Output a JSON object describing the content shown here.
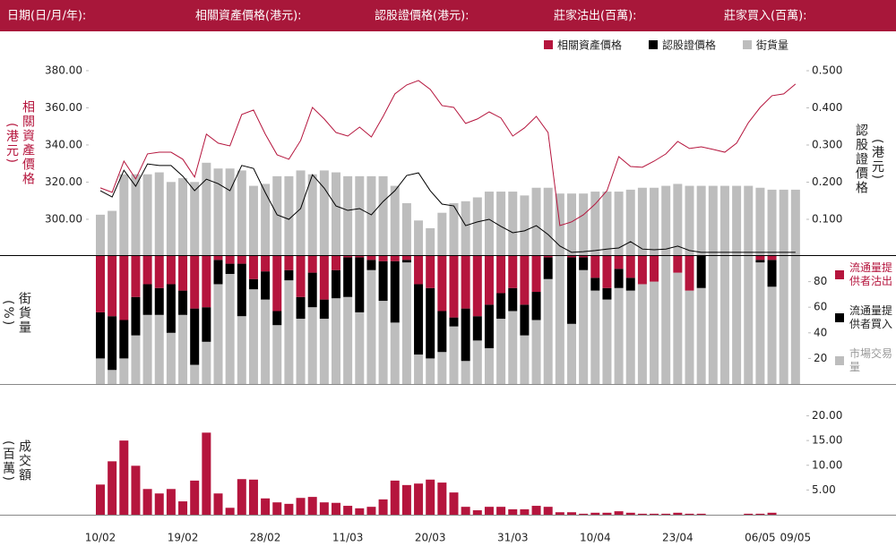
{
  "header_labels": [
    "日期(日/月/年):",
    "相關資產價格(港元):",
    "認股證價格(港元):",
    "莊家沽出(百萬):",
    "莊家買入(百萬):"
  ],
  "chart_data": [
    {
      "type": "combo",
      "legend": "top-right",
      "y_label": "相關資產價格",
      "y_label_unit": "(港元)",
      "y2_label": "認股證價格",
      "y2_label_unit": "(港元)",
      "ylim": [
        280.7,
        384.3
      ],
      "yticks": [
        {
          "value": 300,
          "label": "300.00"
        },
        {
          "value": 320,
          "label": "320.00"
        },
        {
          "value": 340,
          "label": "340.00"
        },
        {
          "value": 360,
          "label": "360.00"
        },
        {
          "value": 380,
          "label": "380.00"
        }
      ],
      "y2lim": [
        0.0036,
        0.5217
      ],
      "y2ticks": [
        {
          "value": 0.1,
          "label": "0.100"
        },
        {
          "value": 0.2,
          "label": "0.200"
        },
        {
          "value": 0.3,
          "label": "0.300"
        },
        {
          "value": 0.4,
          "label": "0.400"
        },
        {
          "value": 0.5,
          "label": "0.500"
        }
      ],
      "y3lim": [
        0,
        100
      ],
      "series": [
        {
          "name": "相關資產價格",
          "color": "#b5153d",
          "type": "line",
          "values": [
            316.9,
            314.5,
            331.3,
            321.7,
            335.2,
            336.1,
            336.1,
            332.3,
            322.7,
            345.8,
            341.0,
            339.5,
            356.4,
            358.8,
            345.8,
            334.7,
            332.3,
            342.4,
            360.2,
            354.0,
            346.7,
            344.8,
            349.6,
            344.3,
            355.4,
            367.5,
            372.3,
            374.7,
            369.9,
            361.2,
            360.2,
            351.6,
            354.0,
            357.8,
            354.5,
            344.8,
            349.2,
            355.4,
            346.7,
            296.6,
            298.6,
            302.4,
            308.2,
            315.4,
            333.7,
            328.4,
            328.0,
            331.3,
            335.2,
            341.9,
            338.1,
            339.0,
            337.6,
            336.1,
            341.0,
            352.0,
            360.2,
            366.5,
            367.5,
            372.8
          ]
        },
        {
          "name": "認股證價格",
          "color": "#000000",
          "type": "line",
          "axis": "y2",
          "values": [
            0.177,
            0.16,
            0.232,
            0.189,
            0.249,
            0.245,
            0.245,
            0.216,
            0.177,
            0.208,
            0.196,
            0.177,
            0.245,
            0.237,
            0.172,
            0.112,
            0.1,
            0.129,
            0.22,
            0.184,
            0.136,
            0.124,
            0.129,
            0.112,
            0.148,
            0.177,
            0.218,
            0.225,
            0.177,
            0.141,
            0.136,
            0.083,
            0.093,
            0.1,
            0.081,
            0.064,
            0.069,
            0.083,
            0.059,
            0.028,
            0.011,
            0.013,
            0.016,
            0.02,
            0.023,
            0.04,
            0.02,
            0.018,
            0.02,
            0.028,
            0.016,
            0.011,
            0.011,
            0.011,
            0.011,
            0.011,
            0.011,
            0.011,
            0.011,
            0.011
          ]
        },
        {
          "name": "街貨量",
          "color": "#bdbdbd",
          "type": "bar",
          "axis": "y3",
          "values": [
            21,
            23,
            42,
            42,
            42,
            43,
            38,
            40,
            38,
            48,
            45,
            45,
            44,
            36,
            37,
            41,
            41,
            44,
            42,
            44,
            43,
            41,
            41,
            41,
            41,
            36,
            27,
            18,
            14,
            22,
            27,
            28,
            30,
            33,
            33,
            33,
            31,
            35,
            35,
            32,
            32,
            32,
            33,
            33,
            33,
            34,
            35,
            35,
            36,
            37,
            36,
            36,
            36,
            36,
            36,
            36,
            35,
            34,
            34,
            34
          ]
        }
      ]
    },
    {
      "type": "stacked_bar",
      "legend": "right",
      "y_label": "街貨量",
      "y_label_unit": "(%)",
      "ylim": [
        0,
        100
      ],
      "yticks": [
        20,
        40,
        60,
        80
      ],
      "series": [
        {
          "name": "流通量提供者沽出",
          "color": "#b5153d",
          "values": [
            44,
            47,
            50,
            32,
            22,
            25,
            22,
            27,
            41,
            40,
            3,
            6,
            6,
            18,
            12,
            43,
            11,
            32,
            13,
            34,
            11,
            1,
            1,
            3,
            4,
            4,
            3,
            22,
            25,
            43,
            48,
            41,
            47,
            38,
            29,
            25,
            38,
            28,
            1,
            0,
            1,
            1,
            17,
            25,
            10,
            17,
            22,
            20,
            0,
            13,
            27,
            0,
            0,
            0,
            0,
            0,
            3,
            3,
            0,
            0
          ]
        },
        {
          "name": "流通量提供者買入",
          "color": "#000000",
          "values": [
            36,
            42,
            30,
            30,
            24,
            21,
            38,
            19,
            44,
            27,
            19,
            8,
            41,
            8,
            22,
            11,
            8,
            17,
            27,
            15,
            22,
            31,
            43,
            8,
            31,
            48,
            2,
            55,
            55,
            32,
            7,
            41,
            19,
            34,
            20,
            18,
            24,
            22,
            17,
            0,
            52,
            10,
            10,
            9,
            15,
            10,
            0,
            0,
            0,
            0,
            0,
            25,
            0,
            0,
            0,
            0,
            2,
            21,
            0,
            0
          ]
        },
        {
          "name": "市場交易量",
          "color": "#bdbdbd",
          "values": [
            20,
            11,
            20,
            38,
            54,
            54,
            40,
            54,
            15,
            33,
            78,
            86,
            53,
            74,
            66,
            46,
            81,
            51,
            60,
            51,
            67,
            68,
            56,
            89,
            65,
            48,
            95,
            23,
            20,
            25,
            45,
            18,
            34,
            28,
            51,
            57,
            38,
            50,
            82,
            100,
            47,
            89,
            73,
            66,
            75,
            73,
            78,
            80,
            100,
            87,
            73,
            75,
            100,
            100,
            100,
            100,
            95,
            76,
            100,
            100
          ]
        }
      ]
    },
    {
      "type": "bar",
      "y_label": "成交額",
      "y_label_unit": "(百萬)",
      "color": "#b5153d",
      "ylim": [
        0,
        21
      ],
      "yticks": [
        {
          "value": 5,
          "label": "5.00"
        },
        {
          "value": 10,
          "label": "10.00"
        },
        {
          "value": 15,
          "label": "15.00"
        },
        {
          "value": 20,
          "label": "20.00"
        }
      ],
      "categories": [
        "10/02",
        null,
        null,
        null,
        null,
        null,
        null,
        "19/02",
        null,
        null,
        null,
        null,
        null,
        null,
        "28/02",
        null,
        null,
        null,
        null,
        null,
        null,
        "11/03",
        null,
        null,
        null,
        null,
        null,
        null,
        "20/03",
        null,
        null,
        null,
        null,
        null,
        null,
        "31/03",
        null,
        null,
        null,
        null,
        null,
        null,
        "10/04",
        null,
        null,
        null,
        null,
        null,
        null,
        "23/04",
        null,
        null,
        null,
        null,
        null,
        null,
        "06/05",
        null,
        null,
        "09/05"
      ],
      "values": [
        6.1,
        10.8,
        15.0,
        9.9,
        5.2,
        4.3,
        5.2,
        2.7,
        6.9,
        16.6,
        4.3,
        1.4,
        7.2,
        7.1,
        3.3,
        2.5,
        2.2,
        3.4,
        3.6,
        2.5,
        2.4,
        1.8,
        1.3,
        1.6,
        3.1,
        6.9,
        6.0,
        6.3,
        7.1,
        6.5,
        4.5,
        1.6,
        0.9,
        1.6,
        1.6,
        1.1,
        1.1,
        1.8,
        1.6,
        0.5,
        0.5,
        0.2,
        0.4,
        0.4,
        0.7,
        0.4,
        0.2,
        0.2,
        0.2,
        0.4,
        0.2,
        0.2,
        0,
        0,
        0,
        0.2,
        0.2,
        0.4,
        0,
        0
      ]
    }
  ]
}
